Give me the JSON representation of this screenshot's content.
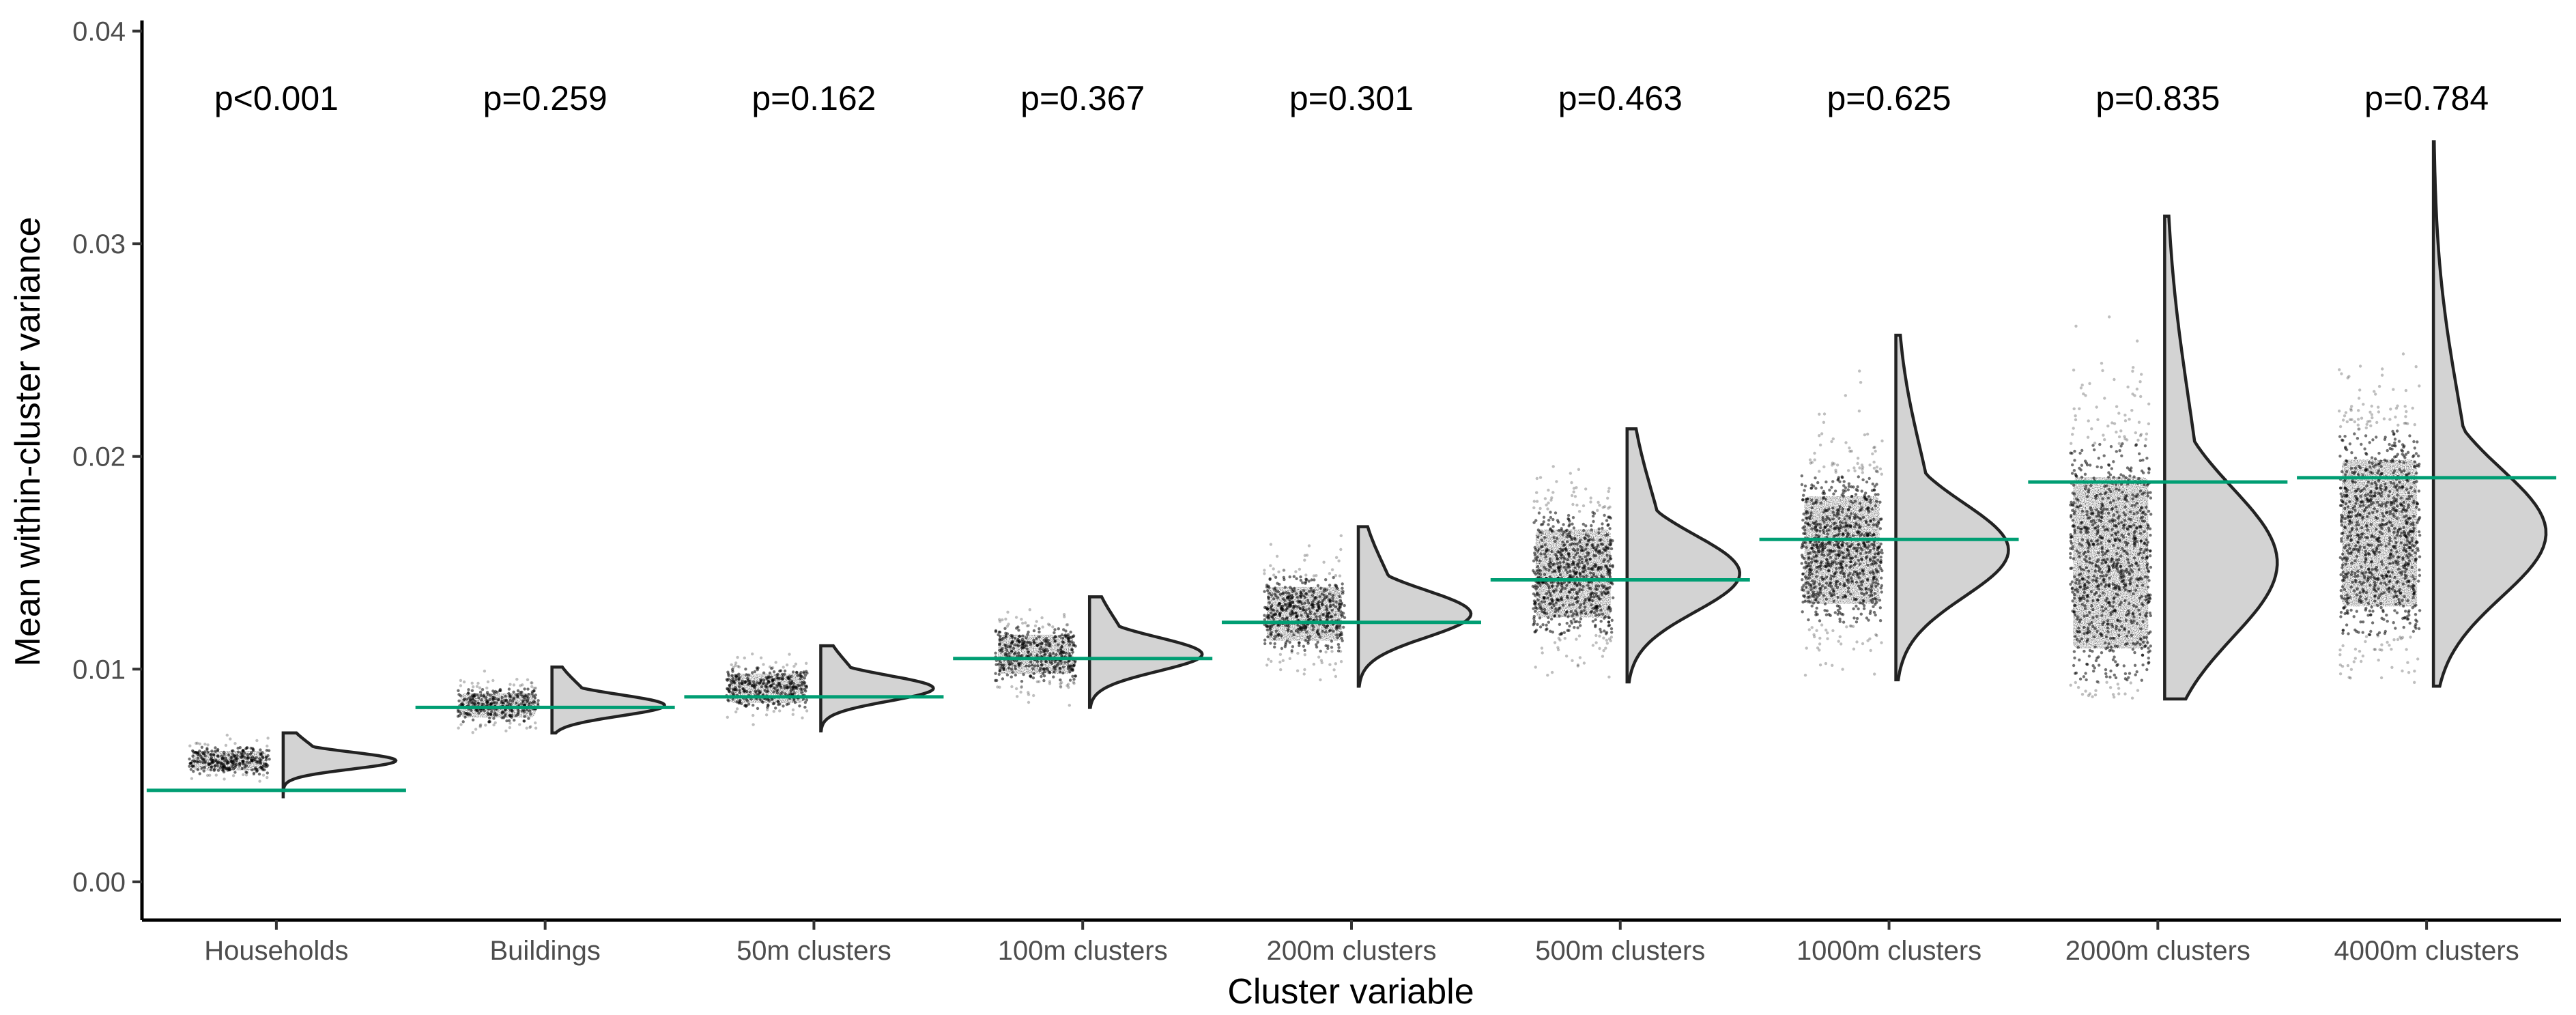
{
  "chart_data": {
    "type": "raincloud",
    "xlabel": "Cluster variable",
    "ylabel": "Mean within-cluster variance",
    "ylim": [
      -0.0018,
      0.0405
    ],
    "yticks": [
      "0.00",
      "0.01",
      "0.02",
      "0.03",
      "0.04"
    ],
    "ytick_values": [
      0.0,
      0.01,
      0.02,
      0.03,
      0.04
    ],
    "grid": false,
    "reference_line_color": "#009E73",
    "point_color": "#000000",
    "density_fill": "#d3d3d3",
    "groups": [
      {
        "label": "Households",
        "p": "p<0.001",
        "reference": 0.0043,
        "mode": 0.0057,
        "spread": 0.0004,
        "min": 0.004,
        "max": 0.007
      },
      {
        "label": "Buildings",
        "p": "p=0.259",
        "reference": 0.0082,
        "mode": 0.0083,
        "spread": 0.0005,
        "min": 0.007,
        "max": 0.0101
      },
      {
        "label": "50m clusters",
        "p": "p=0.162",
        "reference": 0.0087,
        "mode": 0.0091,
        "spread": 0.0006,
        "min": 0.0071,
        "max": 0.0111
      },
      {
        "label": "100m clusters",
        "p": "p=0.367",
        "reference": 0.0105,
        "mode": 0.0107,
        "spread": 0.0008,
        "min": 0.0082,
        "max": 0.0134
      },
      {
        "label": "200m clusters",
        "p": "p=0.301",
        "reference": 0.0122,
        "mode": 0.0126,
        "spread": 0.0011,
        "min": 0.0092,
        "max": 0.0167
      },
      {
        "label": "500m clusters",
        "p": "p=0.463",
        "reference": 0.0142,
        "mode": 0.0145,
        "spread": 0.0018,
        "min": 0.0094,
        "max": 0.0213
      },
      {
        "label": "1000m clusters",
        "p": "p=0.625",
        "reference": 0.0161,
        "mode": 0.0156,
        "spread": 0.0022,
        "min": 0.0095,
        "max": 0.0257
      },
      {
        "label": "2000m clusters",
        "p": "p=0.835",
        "reference": 0.0188,
        "mode": 0.015,
        "spread": 0.0035,
        "min": 0.0086,
        "max": 0.0313
      },
      {
        "label": "4000m clusters",
        "p": "p=0.784",
        "reference": 0.019,
        "mode": 0.0164,
        "spread": 0.003,
        "min": 0.0092,
        "max": 0.0348
      }
    ]
  }
}
